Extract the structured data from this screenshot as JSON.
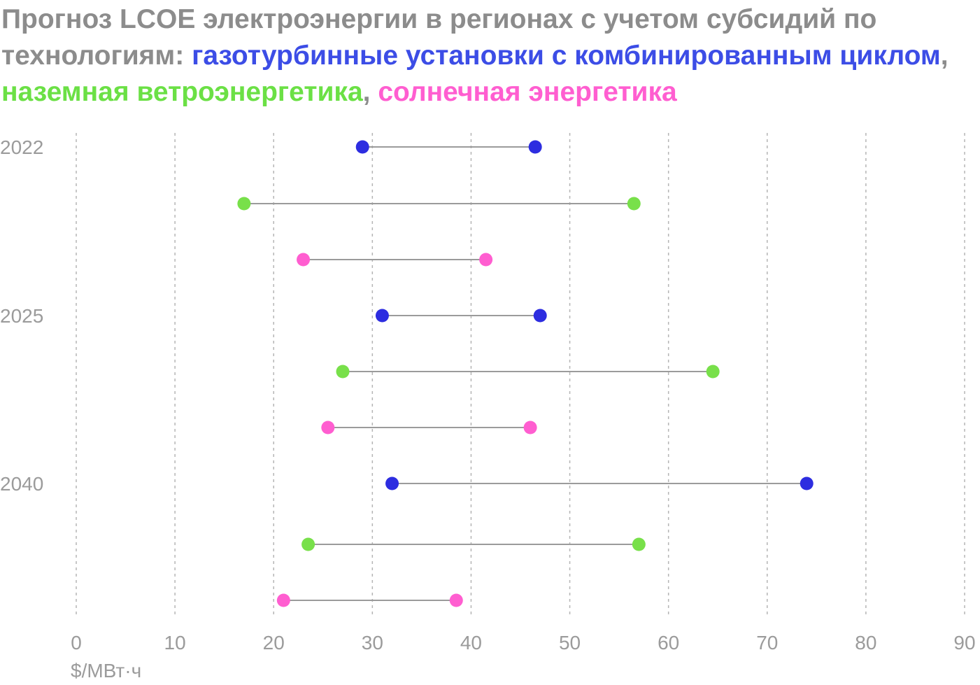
{
  "title": {
    "prefix": "Прогноз LCOE электроэнергии в регионах с учетом субсидий по технологиям: ",
    "gas": "газотурбинные установки с комбинированным циклом",
    "sep1": ", ",
    "wind": "наземная ветроэнергетика",
    "sep2": ", ",
    "solar": "солнечная энергетика"
  },
  "chart_data": {
    "type": "dumbbell",
    "x_unit_label": "$/МВт·ч",
    "xlim": [
      0,
      90
    ],
    "x_ticks": [
      0,
      10,
      20,
      30,
      40,
      50,
      60,
      70,
      80,
      90
    ],
    "grid": "vertical dashed",
    "years": [
      "2022",
      "2025",
      "2040"
    ],
    "colors": {
      "gas": "#2d2de0",
      "wind": "#78e04a",
      "solar": "#ff5ed0",
      "line": "#9b9b9b"
    },
    "rows": [
      {
        "year": "2022",
        "tech": "gas",
        "min": 29.0,
        "max": 46.5
      },
      {
        "year": "2022",
        "tech": "wind",
        "min": 17.0,
        "max": 56.5
      },
      {
        "year": "2022",
        "tech": "solar",
        "min": 23.0,
        "max": 41.5
      },
      {
        "year": "2025",
        "tech": "gas",
        "min": 31.0,
        "max": 47.0
      },
      {
        "year": "2025",
        "tech": "wind",
        "min": 27.0,
        "max": 64.5
      },
      {
        "year": "2025",
        "tech": "solar",
        "min": 25.5,
        "max": 46.0
      },
      {
        "year": "2040",
        "tech": "gas",
        "min": 32.0,
        "max": 74.0
      },
      {
        "year": "2040",
        "tech": "wind",
        "min": 23.5,
        "max": 57.0
      },
      {
        "year": "2040",
        "tech": "solar",
        "min": 21.0,
        "max": 38.5
      }
    ]
  }
}
